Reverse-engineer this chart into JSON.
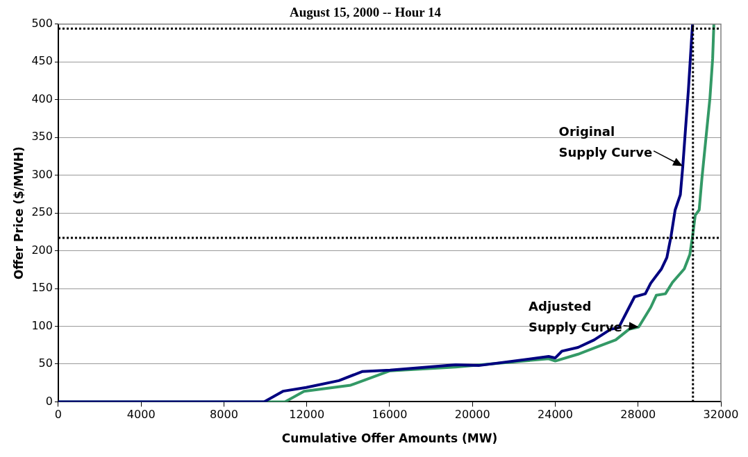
{
  "chart_data": {
    "type": "line",
    "title": "August 15, 2000 -- Hour 14",
    "xlabel": "Cumulative Offer Amounts (MW)",
    "ylabel": "Offer Price ($/MWH)",
    "xlim": [
      0,
      32000
    ],
    "xticks": [
      0,
      4000,
      8000,
      12000,
      16000,
      20000,
      24000,
      28000,
      32000
    ],
    "ylim": [
      0,
      500
    ],
    "yticks": [
      0,
      50,
      100,
      150,
      200,
      250,
      300,
      350,
      400,
      450,
      500
    ],
    "grid": "y",
    "legend": false,
    "marker": "none",
    "line_style": "solid",
    "series": [
      {
        "name": "Original Supply Curve",
        "color": "#000080",
        "x": [
          0,
          9940,
          10850,
          11970,
          13550,
          14670,
          16020,
          19190,
          20300,
          23680,
          24000,
          24320,
          25100,
          25880,
          26670,
          27060,
          27510,
          27830,
          28350,
          28610,
          29130,
          29390,
          29590,
          29790,
          30040,
          30160,
          30290,
          30430,
          30570,
          30630
        ],
        "values": [
          0,
          0,
          14,
          19,
          28,
          40,
          42,
          49,
          48,
          60,
          58,
          67,
          72,
          82,
          96,
          98,
          122,
          139,
          143,
          157,
          176,
          191,
          219,
          254,
          274,
          312,
          361,
          413,
          475,
          500
        ]
      },
      {
        "name": "Adjusted Supply Curve",
        "color": "#339966",
        "x": [
          0,
          10950,
          11870,
          14120,
          16020,
          19190,
          23680,
          24000,
          25100,
          26140,
          26920,
          27560,
          28030,
          28610,
          28880,
          29320,
          29660,
          30230,
          30500,
          30630,
          30760,
          30950,
          31080,
          31280,
          31470,
          31600,
          31660
        ],
        "values": [
          0,
          0,
          14,
          22,
          41,
          46,
          57,
          54,
          63,
          74,
          82,
          96,
          99,
          125,
          141,
          143,
          158,
          176,
          195,
          219,
          247,
          254,
          295,
          350,
          402,
          454,
          500
        ]
      }
    ],
    "ref_lines": [
      {
        "axis": "y",
        "value": 494,
        "color": "#000000",
        "line_style": "dotted"
      },
      {
        "axis": "y",
        "value": 217,
        "color": "#000000",
        "line_style": "dotted"
      },
      {
        "axis": "x",
        "value": 30650,
        "color": "#000000",
        "line_style": "dotted"
      }
    ]
  }
}
